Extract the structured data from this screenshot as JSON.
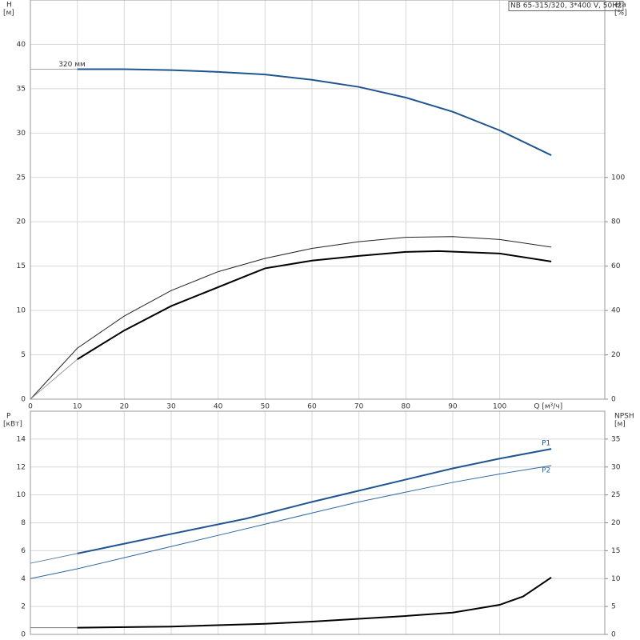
{
  "chart_data": [
    {
      "type": "line",
      "title": "NB 65-315/320, 3*400 V, 50Hz",
      "y_label": "H",
      "y_unit": "[м]",
      "y2_label": "eta",
      "y2_unit": "[%]",
      "x_label": "Q [м³/ч]",
      "xlim": [
        0,
        122.4
      ],
      "xticks": [
        0,
        10,
        20,
        30,
        40,
        50,
        60,
        70,
        80,
        90,
        100
      ],
      "ylim": [
        0,
        45
      ],
      "yticks": [
        0,
        5,
        10,
        15,
        20,
        25,
        30,
        35,
        40
      ],
      "y2lim": [
        0,
        180
      ],
      "y2ticks": [
        0,
        20,
        40,
        60,
        80,
        100
      ],
      "grid": true,
      "annotation": "320 мм",
      "series": [
        {
          "color": "#9aa6b4",
          "linewidth": 1,
          "x": [
            0,
            10
          ],
          "values": [
            37.2,
            37.2
          ]
        },
        {
          "color": "#1f5591",
          "linewidth": 2,
          "x": [
            10,
            20,
            30,
            40,
            50,
            60,
            70,
            80,
            90,
            100,
            111
          ],
          "values": [
            37.2,
            37.2,
            37.1,
            36.9,
            36.6,
            36.0,
            35.2,
            34.0,
            32.4,
            30.3,
            27.5
          ]
        },
        {
          "color": "#222222",
          "linewidth": 1,
          "axis": "y2",
          "x": [
            0,
            10,
            20,
            30,
            40,
            50,
            60,
            70,
            80,
            90,
            100,
            111
          ],
          "values": [
            0,
            23,
            37.5,
            49,
            57.5,
            63.5,
            68,
            71,
            73,
            73.3,
            72,
            68.6
          ]
        },
        {
          "color": "#9a9a9a",
          "linewidth": 1,
          "axis": "y2",
          "x": [
            0,
            10
          ],
          "values": [
            0,
            18
          ]
        },
        {
          "color": "#000000",
          "linewidth": 2,
          "axis": "y2",
          "x": [
            10,
            20,
            30,
            46,
            50,
            60,
            70,
            80,
            87,
            100,
            111
          ],
          "values": [
            18,
            31,
            42,
            55.6,
            59,
            62.5,
            64.6,
            66.4,
            66.8,
            65.7,
            62.1
          ]
        }
      ]
    },
    {
      "type": "line",
      "y_label": "P",
      "y_unit": "[кВт]",
      "y2_label": "NPSH",
      "y2_unit": "[м]",
      "xlim": [
        0,
        122.4
      ],
      "ylim": [
        0,
        16
      ],
      "yticks": [
        0,
        2,
        4,
        6,
        8,
        10,
        12,
        14
      ],
      "y2lim": [
        0,
        40
      ],
      "y2ticks": [
        0,
        5,
        10,
        15,
        20,
        25,
        30,
        35
      ],
      "grid": true,
      "series": [
        {
          "color": "#5b7fa8",
          "linewidth": 1,
          "x": [
            0,
            10
          ],
          "values": [
            5.1,
            5.8
          ]
        },
        {
          "name": "P1",
          "color": "#1f5591",
          "linewidth": 2,
          "x": [
            10,
            20,
            30,
            46,
            60,
            70,
            80,
            90,
            100,
            111
          ],
          "values": [
            5.8,
            6.5,
            7.2,
            8.3,
            9.5,
            10.3,
            11.1,
            11.9,
            12.6,
            13.3
          ]
        },
        {
          "name": "P2",
          "color": "#2f679f",
          "linewidth": 1,
          "x": [
            0,
            10,
            20,
            30,
            40,
            50,
            60,
            70,
            80,
            90,
            100,
            111
          ],
          "values": [
            4.0,
            4.7,
            5.5,
            6.3,
            7.1,
            7.9,
            8.7,
            9.5,
            10.2,
            10.9,
            11.5,
            12.1
          ]
        },
        {
          "color": "#777777",
          "linewidth": 1,
          "axis": "y2",
          "x": [
            0,
            10
          ],
          "values": [
            1.2,
            1.2
          ]
        },
        {
          "color": "#000000",
          "linewidth": 2,
          "axis": "y2",
          "x": [
            10,
            30,
            50,
            60,
            70,
            80,
            90,
            100,
            105,
            111
          ],
          "values": [
            1.2,
            1.4,
            1.9,
            2.3,
            2.8,
            3.3,
            3.9,
            5.3,
            6.8,
            10.2
          ]
        }
      ]
    }
  ]
}
